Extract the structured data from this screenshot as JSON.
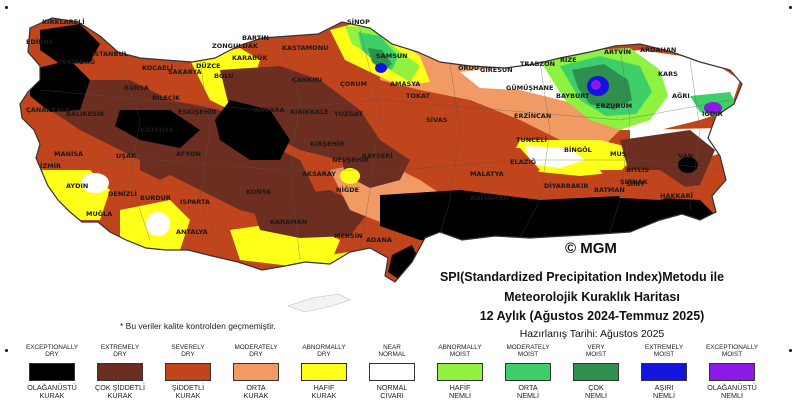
{
  "title": {
    "line1": "SPI(Standardized Precipitation Index)Metodu ile",
    "line2": "Meteorolojik Kuraklık Haritası",
    "line3": "12 Aylık (Ağustos 2024-Temmuz 2025)",
    "line4": "Hazırlanış Tarihi: Ağustos 2025"
  },
  "copyright": "© MGM",
  "note": "* Bu veriler kalite kontrolden geçmemiştir.",
  "cities": [
    "KIRKLARELİ",
    "EDİRNE",
    "TEKİRDAĞ",
    "İSTANBUL",
    "KOCAELİ",
    "SAKARYA",
    "DÜZCE",
    "BOLU",
    "BARTIN",
    "ZONGULDAK",
    "KARABÜK",
    "KASTAMONU",
    "SİNOP",
    "SAMSUN",
    "ORDU",
    "GİRESUN",
    "TRABZON",
    "RİZE",
    "ARTVİN",
    "ARDAHAN",
    "KARS",
    "IĞDIR",
    "AĞRI",
    "ERZURUM",
    "BAYBURT",
    "GÜMÜŞHANE",
    "ERZİNCAN",
    "TOKAT",
    "AMASYA",
    "ÇORUM",
    "ÇANKIRI",
    "ÇANAKKALE",
    "BALIKESİR",
    "BURSA",
    "BİLECİK",
    "ESKİŞEHİR",
    "ANKARA",
    "KIRIKKALE",
    "YOZGAT",
    "SİVAS",
    "MANİSA",
    "İZMİR",
    "UŞAK",
    "KÜTAHYA",
    "AFYON",
    "AYDIN",
    "DENİZLİ",
    "MUĞLA",
    "BURDUR",
    "ISPARTA",
    "ANTALYA",
    "KONYA",
    "KARAMAN",
    "MERSİN",
    "ADANA",
    "AKSARAY",
    "NİĞDE",
    "NEVŞEHİR",
    "KIRŞEHİR",
    "KAYSERİ",
    "MALATYA",
    "ELAZIĞ",
    "TUNCELİ",
    "BİNGÖL",
    "MUŞ",
    "BİTLİS",
    "VAN",
    "HAKKARİ",
    "ŞIRNAK",
    "SİİRT",
    "BATMAN",
    "DİYARBAKIR",
    "ADIYAMAN"
  ],
  "legend": [
    {
      "en": [
        "EXCEPTIONALLY",
        "DRY"
      ],
      "tr": [
        "OLAĞANÜSTÜ",
        "KURAK"
      ],
      "color": "#000000"
    },
    {
      "en": [
        "EXTREMELY",
        "DRY"
      ],
      "tr": [
        "ÇOK ŞİDDETLİ",
        "KURAK"
      ],
      "color": "#6b2e20"
    },
    {
      "en": [
        "SEVERELY",
        "DRY"
      ],
      "tr": [
        "ŞİDDETLİ",
        "KURAK"
      ],
      "color": "#c0441c"
    },
    {
      "en": [
        "MODERATELY",
        "DRY"
      ],
      "tr": [
        "ORTA",
        "KURAK"
      ],
      "color": "#f29a63"
    },
    {
      "en": [
        "ABNORMALLY",
        "DRY"
      ],
      "tr": [
        "HAFİF",
        "KURAK"
      ],
      "color": "#ffff1a"
    },
    {
      "en": [
        "NEAR",
        "NORMAL"
      ],
      "tr": [
        "NORMAL",
        "CİVARI"
      ],
      "color": "#ffffff"
    },
    {
      "en": [
        "ABNORMALLY",
        "MOIST"
      ],
      "tr": [
        "HAFİF",
        "NEMLİ"
      ],
      "color": "#8ff241"
    },
    {
      "en": [
        "MODERATELY",
        "MOIST"
      ],
      "tr": [
        "ORTA",
        "NEMLİ"
      ],
      "color": "#3fcf6a"
    },
    {
      "en": [
        "VERY",
        "MOIST"
      ],
      "tr": [
        "ÇOK",
        "NEMLİ"
      ],
      "color": "#2e8f4e"
    },
    {
      "en": [
        "EXTREMELY",
        "MOIST"
      ],
      "tr": [
        "AŞIRI",
        "NEMLİ"
      ],
      "color": "#1414e0"
    },
    {
      "en": [
        "EXCEPTIONALLY",
        "MOIST"
      ],
      "tr": [
        "OLAĞANÜSTÜ",
        "NEMLİ"
      ],
      "color": "#8a1ae6"
    }
  ]
}
